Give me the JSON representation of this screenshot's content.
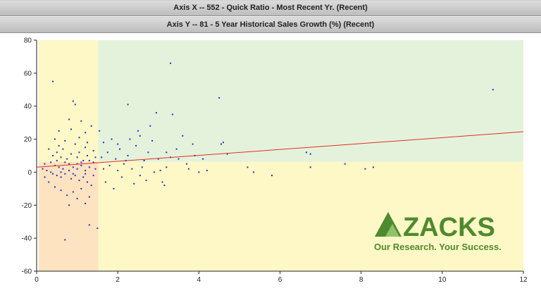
{
  "header": {
    "x_title": "Axis X -- 552 - Quick Ratio - Most Recent Yr. (Recent)",
    "y_title": "Axis Y -- 81 - 5 Year Historical Sales Growth (%) (Recent)"
  },
  "logo": {
    "word": "ZACKS",
    "tagline": "Our Research. Your Success."
  },
  "colors": {
    "quad_top_left": "#fdf8c5",
    "quad_top_right": "#e4f2dc",
    "quad_bottom_left": "#fde3c0",
    "quad_bottom_right": "#fdf8c5",
    "point": "#1f2fcc",
    "trend": "#e03020",
    "logo": "#4e8a2e"
  },
  "chart_data": {
    "type": "scatter",
    "title": "",
    "xlabel": "",
    "ylabel": "",
    "xlim": [
      0,
      12
    ],
    "ylim": [
      -60,
      80
    ],
    "x_ticks": [
      "0",
      "2",
      "4",
      "6",
      "8",
      "10",
      "12"
    ],
    "y_ticks": [
      "80",
      "60",
      "40",
      "20",
      "0",
      "-20",
      "-40",
      "-60"
    ],
    "x_tick_values": [
      0,
      2,
      4,
      6,
      8,
      10,
      12
    ],
    "y_tick_values": [
      80,
      60,
      40,
      20,
      0,
      -20,
      -40,
      -60
    ],
    "grid": false,
    "quadrant_divider": {
      "x": 1.52,
      "y": 6.2
    },
    "trend_line": [
      [
        0,
        3.0
      ],
      [
        12,
        24.5
      ]
    ],
    "points": [
      [
        0.4,
        55
      ],
      [
        0.9,
        43
      ],
      [
        0.95,
        41
      ],
      [
        1.1,
        31
      ],
      [
        0.55,
        25
      ],
      [
        0.8,
        32
      ],
      [
        1.2,
        24
      ],
      [
        1.35,
        28
      ],
      [
        0.7,
        19
      ],
      [
        1.05,
        21
      ],
      [
        0.3,
        14
      ],
      [
        0.5,
        12
      ],
      [
        0.6,
        9
      ],
      [
        0.75,
        8
      ],
      [
        0.85,
        11
      ],
      [
        1.0,
        9
      ],
      [
        1.15,
        7
      ],
      [
        1.25,
        10
      ],
      [
        1.4,
        6
      ],
      [
        0.35,
        6
      ],
      [
        0.45,
        4
      ],
      [
        0.55,
        3
      ],
      [
        0.65,
        2
      ],
      [
        0.8,
        1
      ],
      [
        0.9,
        3
      ],
      [
        1.0,
        2
      ],
      [
        1.1,
        4
      ],
      [
        1.2,
        1
      ],
      [
        1.3,
        3
      ],
      [
        1.45,
        2
      ],
      [
        0.25,
        1
      ],
      [
        0.4,
        -1
      ],
      [
        0.5,
        -2
      ],
      [
        0.6,
        -3
      ],
      [
        0.7,
        -1
      ],
      [
        0.85,
        -4
      ],
      [
        0.95,
        -2
      ],
      [
        1.05,
        -5
      ],
      [
        1.15,
        -3
      ],
      [
        1.25,
        -6
      ],
      [
        1.35,
        -8
      ],
      [
        0.3,
        -6
      ],
      [
        0.45,
        -9
      ],
      [
        0.6,
        -11
      ],
      [
        0.75,
        -14
      ],
      [
        0.9,
        -12
      ],
      [
        1.0,
        -16
      ],
      [
        1.1,
        -10
      ],
      [
        1.2,
        -19
      ],
      [
        0.8,
        -20
      ],
      [
        1.3,
        -15
      ],
      [
        0.7,
        -41
      ],
      [
        1.3,
        -32
      ],
      [
        1.5,
        -34
      ],
      [
        0.2,
        5
      ],
      [
        0.15,
        2
      ],
      [
        0.2,
        -3
      ],
      [
        0.55,
        16
      ],
      [
        0.65,
        14
      ],
      [
        0.95,
        17
      ],
      [
        1.2,
        15
      ],
      [
        1.4,
        13
      ],
      [
        0.4,
        10
      ],
      [
        0.7,
        6
      ],
      [
        1.0,
        5
      ],
      [
        1.3,
        7
      ],
      [
        0.5,
        7
      ],
      [
        0.8,
        5
      ],
      [
        1.1,
        6
      ],
      [
        1.45,
        9
      ],
      [
        0.35,
        0
      ],
      [
        0.6,
        0
      ],
      [
        0.9,
        -1
      ],
      [
        1.2,
        -1
      ],
      [
        1.4,
        -2
      ],
      [
        0.45,
        20
      ],
      [
        0.85,
        26
      ],
      [
        1.25,
        18
      ],
      [
        1.05,
        12
      ],
      [
        1.55,
        25
      ],
      [
        1.65,
        18
      ],
      [
        1.75,
        12
      ],
      [
        1.85,
        20
      ],
      [
        1.95,
        8
      ],
      [
        2.05,
        14
      ],
      [
        2.15,
        5
      ],
      [
        2.25,
        10
      ],
      [
        2.35,
        2
      ],
      [
        2.45,
        16
      ],
      [
        2.55,
        22
      ],
      [
        2.65,
        7
      ],
      [
        2.75,
        12
      ],
      [
        2.85,
        19
      ],
      [
        2.95,
        36
      ],
      [
        2.25,
        41
      ],
      [
        2.5,
        25
      ],
      [
        2.8,
        28
      ],
      [
        3.0,
        8
      ],
      [
        3.1,
        -6
      ],
      [
        3.2,
        3
      ],
      [
        3.3,
        9
      ],
      [
        3.35,
        35
      ],
      [
        3.3,
        66
      ],
      [
        3.45,
        14
      ],
      [
        3.6,
        22
      ],
      [
        3.7,
        5
      ],
      [
        3.85,
        17
      ],
      [
        3.9,
        10
      ],
      [
        1.7,
        -6
      ],
      [
        1.9,
        -10
      ],
      [
        2.1,
        -3
      ],
      [
        2.4,
        -7
      ],
      [
        2.7,
        -5
      ],
      [
        3.05,
        1
      ],
      [
        1.8,
        4
      ],
      [
        2.0,
        1
      ],
      [
        2.2,
        7
      ],
      [
        2.6,
        3
      ],
      [
        2.9,
        0
      ],
      [
        3.15,
        -8
      ],
      [
        3.5,
        8
      ],
      [
        3.75,
        2
      ],
      [
        1.6,
        9
      ],
      [
        2.3,
        20
      ],
      [
        2.0,
        17
      ],
      [
        1.65,
        2
      ],
      [
        2.55,
        -2
      ],
      [
        3.2,
        12
      ],
      [
        4.5,
        45
      ],
      [
        4.55,
        17
      ],
      [
        4.6,
        18
      ],
      [
        4.1,
        8
      ],
      [
        4.2,
        1
      ],
      [
        4.0,
        0
      ],
      [
        4.7,
        11
      ],
      [
        5.2,
        3
      ],
      [
        5.35,
        0
      ],
      [
        5.8,
        -2
      ],
      [
        6.65,
        12
      ],
      [
        6.75,
        11
      ],
      [
        6.75,
        3
      ],
      [
        7.6,
        5
      ],
      [
        8.1,
        2
      ],
      [
        8.3,
        3
      ],
      [
        11.25,
        50
      ]
    ]
  }
}
